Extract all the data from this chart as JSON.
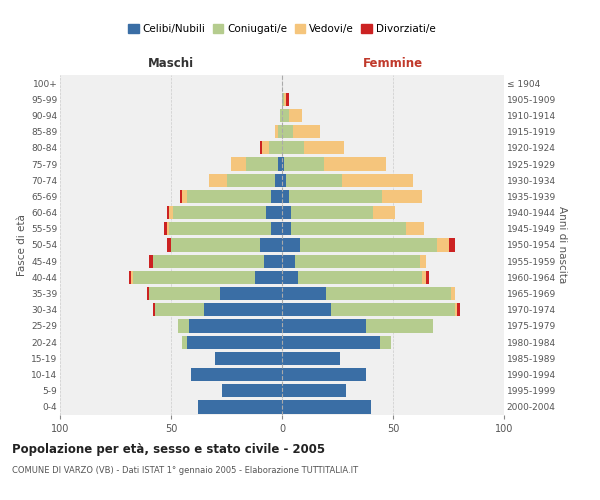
{
  "age_groups": [
    "0-4",
    "5-9",
    "10-14",
    "15-19",
    "20-24",
    "25-29",
    "30-34",
    "35-39",
    "40-44",
    "45-49",
    "50-54",
    "55-59",
    "60-64",
    "65-69",
    "70-74",
    "75-79",
    "80-84",
    "85-89",
    "90-94",
    "95-99",
    "100+"
  ],
  "birth_years": [
    "2000-2004",
    "1995-1999",
    "1990-1994",
    "1985-1989",
    "1980-1984",
    "1975-1979",
    "1970-1974",
    "1965-1969",
    "1960-1964",
    "1955-1959",
    "1950-1954",
    "1945-1949",
    "1940-1944",
    "1935-1939",
    "1930-1934",
    "1925-1929",
    "1920-1924",
    "1915-1919",
    "1910-1914",
    "1905-1909",
    "≤ 1904"
  ],
  "males": {
    "celibi": [
      38,
      27,
      41,
      30,
      43,
      42,
      35,
      28,
      12,
      8,
      10,
      5,
      7,
      5,
      3,
      2,
      0,
      0,
      0,
      0,
      0
    ],
    "coniugati": [
      0,
      0,
      0,
      0,
      2,
      5,
      22,
      32,
      55,
      50,
      40,
      46,
      42,
      38,
      22,
      14,
      6,
      2,
      1,
      0,
      0
    ],
    "vedovi": [
      0,
      0,
      0,
      0,
      0,
      0,
      0,
      0,
      1,
      0,
      0,
      1,
      2,
      2,
      8,
      7,
      3,
      1,
      0,
      0,
      0
    ],
    "divorziati": [
      0,
      0,
      0,
      0,
      0,
      0,
      1,
      1,
      1,
      2,
      2,
      1,
      1,
      1,
      0,
      0,
      1,
      0,
      0,
      0,
      0
    ]
  },
  "females": {
    "nubili": [
      40,
      29,
      38,
      26,
      44,
      38,
      22,
      20,
      7,
      6,
      8,
      4,
      4,
      3,
      2,
      1,
      0,
      0,
      0,
      0,
      0
    ],
    "coniugate": [
      0,
      0,
      0,
      0,
      5,
      30,
      56,
      56,
      56,
      56,
      62,
      52,
      37,
      42,
      25,
      18,
      10,
      5,
      3,
      1,
      0
    ],
    "vedove": [
      0,
      0,
      0,
      0,
      0,
      0,
      1,
      2,
      2,
      3,
      5,
      8,
      10,
      18,
      32,
      28,
      18,
      12,
      6,
      1,
      0
    ],
    "divorziate": [
      0,
      0,
      0,
      0,
      0,
      0,
      1,
      0,
      1,
      0,
      3,
      0,
      0,
      0,
      0,
      0,
      0,
      0,
      0,
      1,
      0
    ]
  },
  "colors": {
    "celibi": "#3a6ea5",
    "coniugati": "#b5cc8e",
    "vedovi": "#f5c57c",
    "divorziati": "#cc2222"
  },
  "xlim": 100,
  "title": "Popolazione per età, sesso e stato civile - 2005",
  "subtitle": "COMUNE DI VARZO (VB) - Dati ISTAT 1° gennaio 2005 - Elaborazione TUTTITALIA.IT",
  "ylabel_left": "Fasce di età",
  "ylabel_right": "Anni di nascita",
  "xlabel_left": "Maschi",
  "xlabel_right": "Femmine",
  "bg_color": "#f0f0f0",
  "grid_color": "#cccccc",
  "legend_labels": [
    "Celibi/Nubili",
    "Coniugati/e",
    "Vedovi/e",
    "Divorziati/e"
  ]
}
